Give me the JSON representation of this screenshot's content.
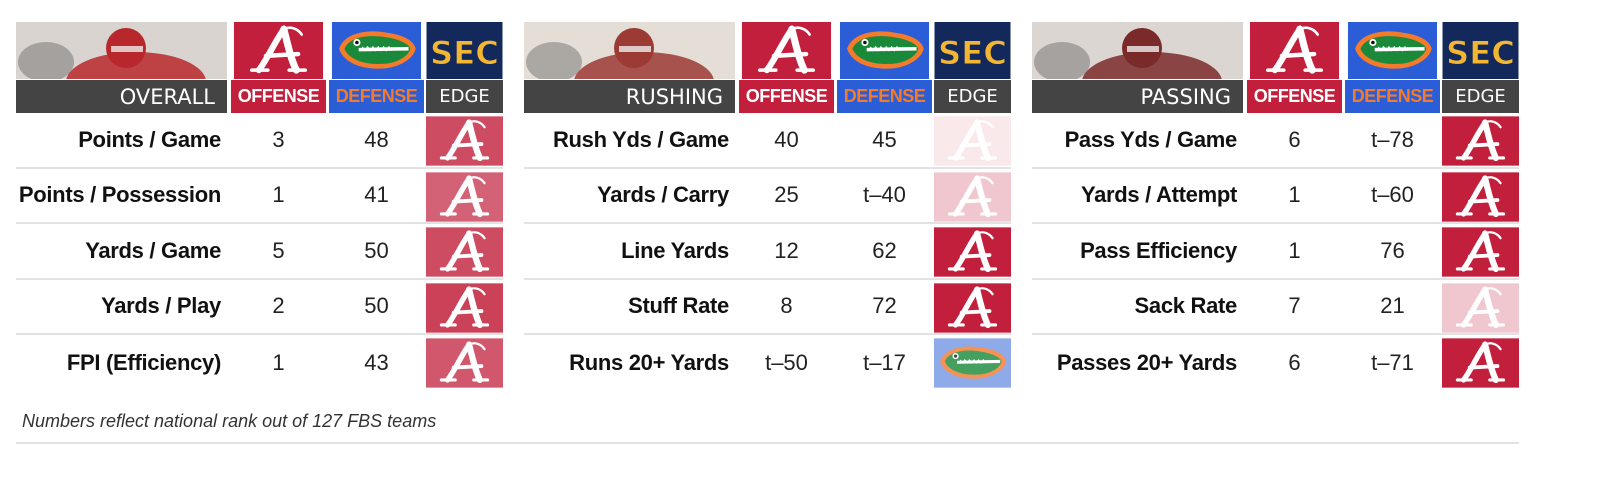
{
  "colors": {
    "alabama_crimson": "#c11f3b",
    "florida_blue": "#2b5ed6",
    "florida_orange": "#f47a2c",
    "header_gray": "#444444"
  },
  "column_labels": {
    "offense": "OFFENSE",
    "defense": "DEFENSE",
    "edge": "EDGE"
  },
  "footnote": "Numbers reflect national rank out of 127 FBS teams",
  "logos": {
    "alabama": "alabama-a-logo",
    "florida": "florida-gator-logo",
    "conference": "SEC"
  },
  "chart_data": {
    "type": "table",
    "note": "Numbers reflect national rank out of 127 FBS teams",
    "panels": [
      {
        "title": "OVERALL",
        "rows": [
          {
            "label": "Points / Game",
            "offense": "3",
            "defense": "48",
            "edge": "alabama",
            "edge_strength": 0.8
          },
          {
            "label": "Points / Possession",
            "offense": "1",
            "defense": "41",
            "edge": "alabama",
            "edge_strength": 0.7
          },
          {
            "label": "Yards / Game",
            "offense": "5",
            "defense": "50",
            "edge": "alabama",
            "edge_strength": 0.8
          },
          {
            "label": "Yards / Play",
            "offense": "2",
            "defense": "50",
            "edge": "alabama",
            "edge_strength": 0.85
          },
          {
            "label": "FPI (Efficiency)",
            "offense": "1",
            "defense": "43",
            "edge": "alabama",
            "edge_strength": 0.75
          }
        ]
      },
      {
        "title": "RUSHING",
        "rows": [
          {
            "label": "Rush Yds / Game",
            "offense": "40",
            "defense": "45",
            "edge": "alabama",
            "edge_strength": 0.1
          },
          {
            "label": "Yards / Carry",
            "offense": "25",
            "defense": "t-40",
            "edge": "alabama",
            "edge_strength": 0.25
          },
          {
            "label": "Line Yards",
            "offense": "12",
            "defense": "62",
            "edge": "alabama",
            "edge_strength": 1.0
          },
          {
            "label": "Stuff Rate",
            "offense": "8",
            "defense": "72",
            "edge": "alabama",
            "edge_strength": 1.0
          },
          {
            "label": "Runs 20+ Yards",
            "offense": "t-50",
            "defense": "t-17",
            "edge": "florida",
            "edge_strength": 0.65
          }
        ]
      },
      {
        "title": "PASSING",
        "rows": [
          {
            "label": "Pass Yds / Game",
            "offense": "6",
            "defense": "t-78",
            "edge": "alabama",
            "edge_strength": 1.0
          },
          {
            "label": "Yards / Attempt",
            "offense": "1",
            "defense": "t-60",
            "edge": "alabama",
            "edge_strength": 1.0
          },
          {
            "label": "Pass Efficiency",
            "offense": "1",
            "defense": "76",
            "edge": "alabama",
            "edge_strength": 1.0
          },
          {
            "label": "Sack Rate",
            "offense": "7",
            "defense": "21",
            "edge": "alabama",
            "edge_strength": 0.25
          },
          {
            "label": "Passes 20+ Yards",
            "offense": "6",
            "defense": "t-71",
            "edge": "alabama",
            "edge_strength": 1.0
          }
        ]
      }
    ]
  }
}
